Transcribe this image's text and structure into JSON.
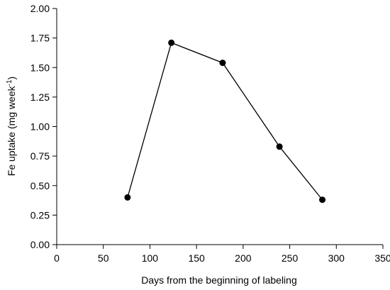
{
  "chart_data": {
    "type": "line",
    "title": "",
    "xlabel": "Days from the beginning of labeling",
    "ylabel": {
      "base": "Fe uptake (mg week",
      "superscript": "-1",
      "close": ")"
    },
    "xlim": [
      0,
      350
    ],
    "ylim": [
      0,
      2
    ],
    "x_ticks": [
      0,
      50,
      100,
      150,
      200,
      250,
      300,
      350
    ],
    "x_tick_labels": [
      "0",
      "50",
      "100",
      "150",
      "200",
      "250",
      "300",
      "350"
    ],
    "y_ticks": [
      0,
      0.25,
      0.5,
      0.75,
      1,
      1.25,
      1.5,
      1.75,
      2
    ],
    "y_tick_labels": [
      "0.00",
      "0.25",
      "0.50",
      "0.75",
      "1.00",
      "1.25",
      "1.50",
      "1.75",
      "2.00"
    ],
    "grid": false,
    "legend": "none",
    "colors": {
      "line": "#000000",
      "marker": "#000000",
      "axis": "#000000"
    },
    "series": [
      {
        "x": [
          76,
          123,
          178,
          239,
          285
        ],
        "y": [
          0.4,
          1.71,
          1.54,
          0.83,
          0.38
        ]
      }
    ]
  }
}
